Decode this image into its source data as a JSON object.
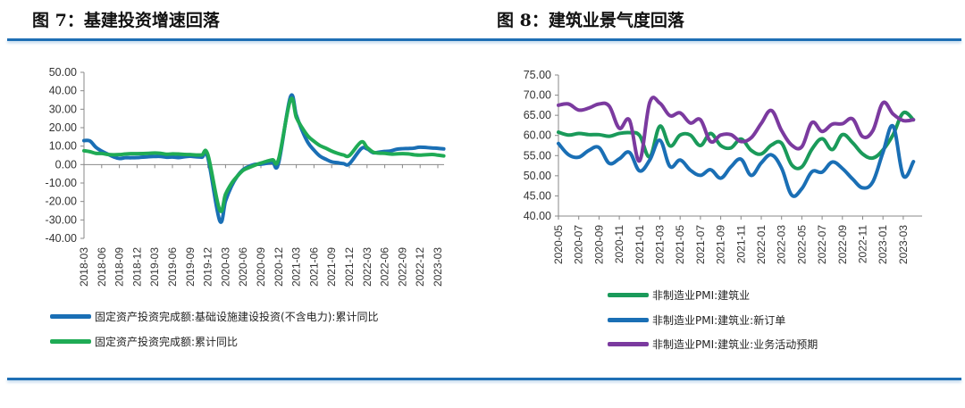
{
  "figures": [
    {
      "title": "图 7：基建投资增速回落"
    },
    {
      "title": "图 8：建筑业景气度回落"
    }
  ],
  "chart_data": [
    {
      "type": "line",
      "ylim": [
        -40,
        50
      ],
      "yticks": [
        "50.00",
        "40.00",
        "30.00",
        "20.00",
        "10.00",
        "0.00",
        "-10.00",
        "-20.00",
        "-30.00",
        "-40.00"
      ],
      "ytick_values": [
        50,
        40,
        30,
        20,
        10,
        0,
        -10,
        -20,
        -30,
        -40
      ],
      "xticks": [
        "2018-03",
        "2018-06",
        "2018-09",
        "2018-12",
        "2019-03",
        "2019-06",
        "2019-09",
        "2019-12",
        "2020-03",
        "2020-06",
        "2020-09",
        "2020-12",
        "2021-03",
        "2021-06",
        "2021-09",
        "2021-12",
        "2022-03",
        "2022-06",
        "2022-09",
        "2022-12",
        "2023-03"
      ],
      "x": [
        "2018-03",
        "2018-04",
        "2018-05",
        "2018-06",
        "2018-07",
        "2018-08",
        "2018-09",
        "2018-10",
        "2018-11",
        "2018-12",
        "2019-02",
        "2019-03",
        "2019-04",
        "2019-05",
        "2019-06",
        "2019-07",
        "2019-08",
        "2019-09",
        "2019-10",
        "2019-11",
        "2019-12",
        "2020-02",
        "2020-03",
        "2020-04",
        "2020-05",
        "2020-06",
        "2020-07",
        "2020-08",
        "2020-09",
        "2020-10",
        "2020-11",
        "2020-12",
        "2021-02",
        "2021-03",
        "2021-04",
        "2021-05",
        "2021-06",
        "2021-07",
        "2021-08",
        "2021-09",
        "2021-10",
        "2021-11",
        "2021-12",
        "2022-02",
        "2022-03",
        "2022-04",
        "2022-05",
        "2022-06",
        "2022-07",
        "2022-08",
        "2022-09",
        "2022-10",
        "2022-11",
        "2022-12",
        "2023-02",
        "2023-03",
        "2023-04"
      ],
      "series": [
        {
          "name": "固定资产投资完成额:基础设施建设投资(不含电力):累计同比",
          "color": "#1a6fb5",
          "values": [
            13.0,
            12.8,
            9.4,
            7.3,
            5.7,
            4.2,
            3.3,
            3.7,
            3.7,
            3.8,
            4.3,
            4.4,
            4.4,
            4.0,
            4.1,
            3.8,
            4.2,
            4.5,
            4.2,
            4.0,
            3.8,
            -30.3,
            -19.7,
            -11.8,
            -6.3,
            -2.7,
            -1.0,
            0.1,
            0.2,
            0.7,
            1.2,
            0.9,
            36.6,
            26.8,
            18.4,
            11.8,
            7.8,
            4.6,
            2.9,
            1.5,
            1.0,
            0.5,
            0.4,
            8.6,
            8.5,
            6.5,
            6.7,
            7.1,
            7.4,
            8.3,
            8.6,
            8.7,
            8.9,
            9.4,
            9.0,
            8.8,
            8.5
          ]
        },
        {
          "name": "固定资产投资完成额:累计同比",
          "color": "#1fab55",
          "values": [
            7.5,
            7.0,
            6.1,
            6.0,
            5.5,
            5.3,
            5.4,
            5.7,
            5.9,
            5.9,
            6.1,
            6.3,
            6.1,
            5.6,
            5.8,
            5.7,
            5.5,
            5.4,
            5.2,
            5.2,
            5.4,
            -24.5,
            -16.1,
            -10.3,
            -6.3,
            -3.1,
            -1.6,
            -0.3,
            0.8,
            1.8,
            2.6,
            2.9,
            35.0,
            25.6,
            19.9,
            15.4,
            12.6,
            10.3,
            8.9,
            7.3,
            6.1,
            5.2,
            4.9,
            12.2,
            9.3,
            6.8,
            6.2,
            6.1,
            5.7,
            5.8,
            5.9,
            5.8,
            5.3,
            5.1,
            5.5,
            5.1,
            4.7
          ]
        }
      ]
    },
    {
      "type": "line",
      "ylim": [
        40,
        75
      ],
      "yticks": [
        "75.00",
        "70.00",
        "65.00",
        "60.00",
        "55.00",
        "50.00",
        "45.00",
        "40.00"
      ],
      "ytick_values": [
        75,
        70,
        65,
        60,
        55,
        50,
        45,
        40
      ],
      "xticks": [
        "2020-05",
        "2020-07",
        "2020-09",
        "2020-11",
        "2021-01",
        "2021-03",
        "2021-05",
        "2021-07",
        "2021-09",
        "2021-11",
        "2022-01",
        "2022-03",
        "2022-05",
        "2022-07",
        "2022-09",
        "2022-11",
        "2023-01",
        "2023-03"
      ],
      "x_start": "2020-05",
      "series": [
        {
          "name": "非制造业PMI:建筑业",
          "color": "#1a9a5a",
          "values": [
            60.8,
            60.1,
            60.5,
            60.2,
            60.2,
            59.8,
            60.5,
            60.7,
            60.0,
            54.7,
            62.3,
            57.4,
            60.1,
            60.1,
            57.5,
            60.5,
            57.5,
            56.9,
            59.1,
            56.3,
            55.4,
            57.6,
            58.1,
            52.7,
            52.2,
            56.6,
            59.2,
            56.5,
            60.2,
            58.2,
            55.4,
            54.4,
            56.4,
            60.2,
            65.6,
            63.9
          ]
        },
        {
          "name": "非制造业PMI:建筑业:新订单",
          "color": "#1a6fb5",
          "values": [
            58.0,
            55.2,
            54.6,
            56.3,
            57.0,
            53.1,
            54.2,
            55.8,
            51.2,
            53.9,
            58.8,
            52.3,
            53.9,
            51.4,
            50.1,
            51.5,
            49.4,
            52.2,
            54.1,
            50.1,
            53.2,
            55.2,
            51.9,
            45.2,
            46.8,
            51.0,
            50.9,
            53.4,
            51.8,
            49.2,
            47.0,
            48.5,
            55.8,
            62.3,
            50.0,
            53.5
          ]
        },
        {
          "name": "非制造业PMI:建筑业:业务活动预期",
          "color": "#7b3a9f",
          "values": [
            67.5,
            67.8,
            66.3,
            66.8,
            67.8,
            67.3,
            61.8,
            63.8,
            53.7,
            68.2,
            68.0,
            64.9,
            65.6,
            63.1,
            63.9,
            58.5,
            60.1,
            60.2,
            58.5,
            59.4,
            63.0,
            66.2,
            61.2,
            57.6,
            57.2,
            63.2,
            61.0,
            62.8,
            62.9,
            64.1,
            59.7,
            61.2,
            68.1,
            65.3,
            63.7,
            63.9
          ]
        }
      ]
    }
  ]
}
